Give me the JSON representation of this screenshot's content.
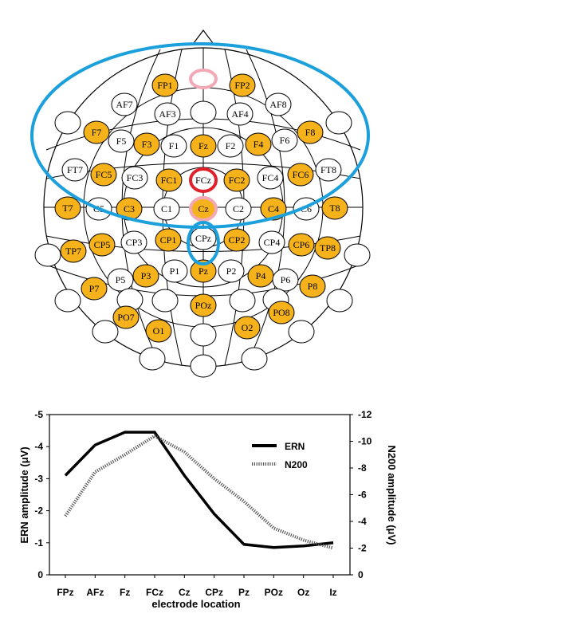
{
  "colors": {
    "active_electrode": "#f5b21b",
    "inactive_electrode": "#ffffff",
    "highlight_red": "#e0202a",
    "highlight_pink": "#f3a8b6",
    "highlight_blue": "#1ba0dc",
    "line": "#000000"
  },
  "electrode_map": {
    "electrodes": [
      {
        "label": "FP1",
        "active": true
      },
      {
        "label": "",
        "active": false,
        "highlight": "pink"
      },
      {
        "label": "FP2",
        "active": true
      },
      {
        "label": "AF7",
        "active": false
      },
      {
        "label": "AF3",
        "active": false
      },
      {
        "label": "",
        "active": false
      },
      {
        "label": "AF4",
        "active": false
      },
      {
        "label": "AF8",
        "active": false
      },
      {
        "label": "",
        "active": false
      },
      {
        "label": "F7",
        "active": true
      },
      {
        "label": "F5",
        "active": false
      },
      {
        "label": "F3",
        "active": true
      },
      {
        "label": "F1",
        "active": false
      },
      {
        "label": "Fz",
        "active": true
      },
      {
        "label": "F2",
        "active": false
      },
      {
        "label": "F4",
        "active": true
      },
      {
        "label": "F6",
        "active": false
      },
      {
        "label": "F8",
        "active": true
      },
      {
        "label": "",
        "active": false
      },
      {
        "label": "FT7",
        "active": false
      },
      {
        "label": "FC5",
        "active": true
      },
      {
        "label": "FC3",
        "active": false
      },
      {
        "label": "FC1",
        "active": true
      },
      {
        "label": "FCz",
        "active": false,
        "highlight": "red"
      },
      {
        "label": "FC2",
        "active": true
      },
      {
        "label": "FC4",
        "active": false
      },
      {
        "label": "FC6",
        "active": true
      },
      {
        "label": "FT8",
        "active": false
      },
      {
        "label": "T7",
        "active": true
      },
      {
        "label": "C5",
        "active": false
      },
      {
        "label": "C3",
        "active": true
      },
      {
        "label": "C1",
        "active": false
      },
      {
        "label": "Cz",
        "active": true,
        "highlight": "pink"
      },
      {
        "label": "C2",
        "active": false
      },
      {
        "label": "C4",
        "active": true
      },
      {
        "label": "C6",
        "active": false
      },
      {
        "label": "T8",
        "active": true
      },
      {
        "label": "",
        "active": false
      },
      {
        "label": "TP7",
        "active": true
      },
      {
        "label": "CP5",
        "active": true
      },
      {
        "label": "CP3",
        "active": false
      },
      {
        "label": "CP1",
        "active": true
      },
      {
        "label": "CPz",
        "active": false
      },
      {
        "label": "CP2",
        "active": true
      },
      {
        "label": "CP4",
        "active": false
      },
      {
        "label": "CP6",
        "active": true
      },
      {
        "label": "TP8",
        "active": true
      },
      {
        "label": "",
        "active": false
      },
      {
        "label": "P7",
        "active": true
      },
      {
        "label": "P5",
        "active": false
      },
      {
        "label": "P3",
        "active": true
      },
      {
        "label": "P1",
        "active": false
      },
      {
        "label": "Pz",
        "active": true
      },
      {
        "label": "P2",
        "active": false
      },
      {
        "label": "P4",
        "active": true
      },
      {
        "label": "P6",
        "active": false
      },
      {
        "label": "P8",
        "active": true
      },
      {
        "label": "",
        "active": false
      },
      {
        "label": "",
        "active": false
      },
      {
        "label": "",
        "active": false
      },
      {
        "label": "POz",
        "active": true
      },
      {
        "label": "",
        "active": false
      },
      {
        "label": "",
        "active": false
      },
      {
        "label": "",
        "active": false
      },
      {
        "label": "PO7",
        "active": true
      },
      {
        "label": "PO8",
        "active": true
      },
      {
        "label": "O1",
        "active": true
      },
      {
        "label": "",
        "active": false
      },
      {
        "label": "O2",
        "active": true
      },
      {
        "label": "",
        "active": false
      },
      {
        "label": "",
        "active": false
      },
      {
        "label": "",
        "active": false
      },
      {
        "label": "",
        "active": false
      },
      {
        "label": "",
        "active": false
      }
    ]
  },
  "chart_data": {
    "type": "line",
    "categories": [
      "FPz",
      "AFz",
      "Fz",
      "FCz",
      "Cz",
      "CPz",
      "Pz",
      "POz",
      "Oz",
      "Iz"
    ],
    "xlabel": "electrode location",
    "ylabel_left": "ERN amplitude (μV)",
    "ylabel_right": "N200 amplitude (μV)",
    "ylim_left": [
      0,
      -5
    ],
    "ylim_right": [
      0,
      -12
    ],
    "yticks_left": [
      "0",
      "-1",
      "-2",
      "-3",
      "-4",
      "-5"
    ],
    "yticks_right": [
      "0",
      "-2",
      "-4",
      "-6",
      "-8",
      "-10",
      "-12"
    ],
    "legend_position": "top-right",
    "series": [
      {
        "name": "ERN",
        "axis": "left",
        "style": "solid",
        "values": [
          -3.1,
          -4.05,
          -4.45,
          -4.45,
          -3.1,
          -1.9,
          -0.95,
          -0.85,
          -0.9,
          -1.0
        ]
      },
      {
        "name": "N200",
        "axis": "right",
        "style": "dotted",
        "values": [
          -4.4,
          -7.7,
          -9.0,
          -10.4,
          -9.2,
          -7.2,
          -5.5,
          -3.5,
          -2.6,
          -2.0
        ]
      }
    ]
  }
}
